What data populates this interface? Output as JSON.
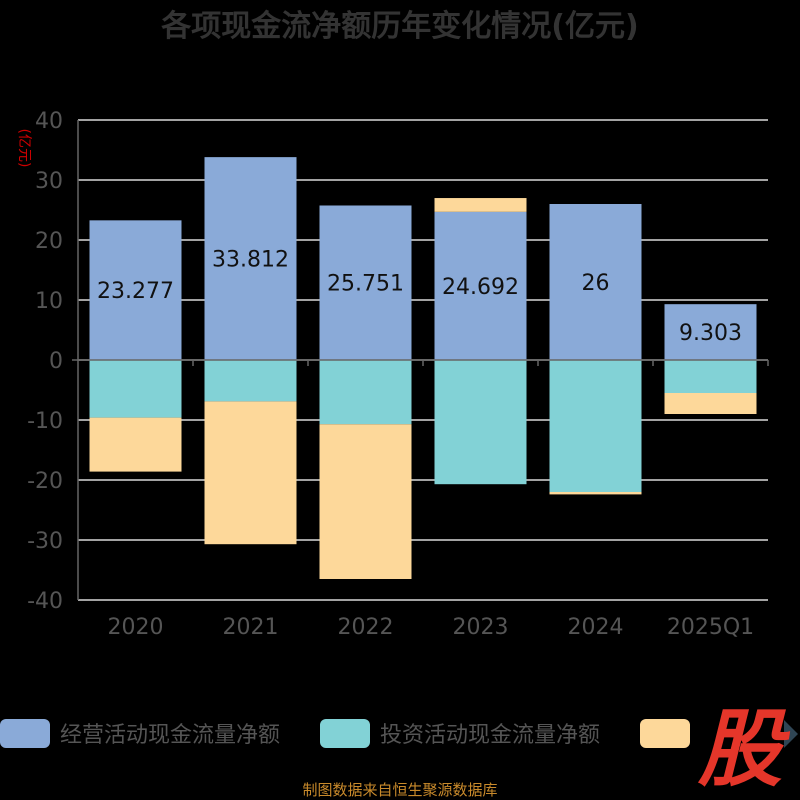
{
  "title": "各项现金流净额历年变化情况(亿元)",
  "unit_label": "(亿元)",
  "footer": "制图数据来自恒生聚源数据库",
  "watermark": "股",
  "chart_data": {
    "type": "bar",
    "stacked": true,
    "title": "各项现金流净额历年变化情况(亿元)",
    "ylabel": "(亿元)",
    "ylim": [
      -40,
      40
    ],
    "yticks": [
      40,
      30,
      20,
      10,
      0,
      -10,
      -20,
      -30,
      -40
    ],
    "grid": true,
    "legend_position": "bottom",
    "categories": [
      "2020",
      "2021",
      "2022",
      "2023",
      "2024",
      "2025Q1"
    ],
    "series": [
      {
        "name": "经营活动现金流量净额",
        "color": "#8aaad8",
        "values": [
          23.277,
          33.812,
          25.751,
          24.692,
          26,
          9.303
        ]
      },
      {
        "name": "投资活动现金流量净额",
        "color": "#82d2d6",
        "values": [
          -9.6,
          -6.9,
          -10.7,
          -20.7,
          -22.0,
          -5.5
        ]
      },
      {
        "name": "",
        "color": "#fdd89a",
        "values": [
          -9.0,
          -23.8,
          -25.8,
          2.3,
          -0.4,
          -3.5
        ]
      }
    ],
    "data_labels": [
      "23.277",
      "33.812",
      "25.751",
      "24.692",
      "26",
      "9.303"
    ]
  }
}
